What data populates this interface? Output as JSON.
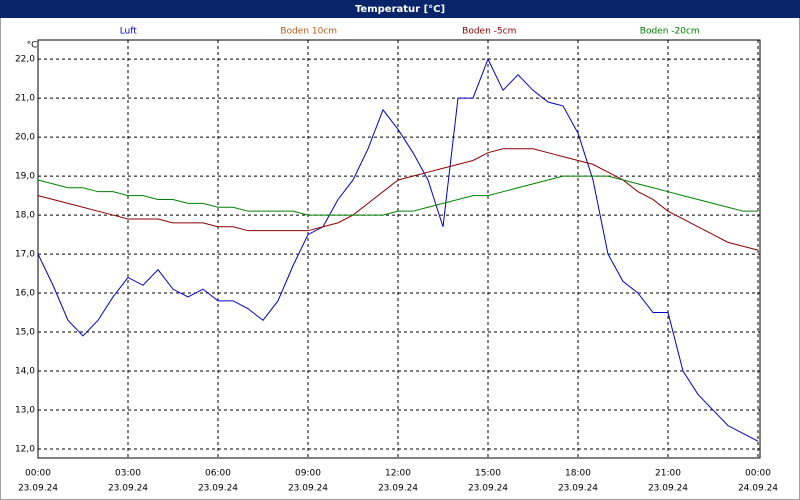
{
  "chart_data": {
    "type": "line",
    "title": "Temperatur [°C]",
    "y_unit": "°C",
    "x": [
      0,
      0.5,
      1,
      1.5,
      2,
      2.5,
      3,
      3.5,
      4,
      4.5,
      5,
      5.5,
      6,
      6.5,
      7,
      7.5,
      8,
      8.5,
      9,
      9.5,
      10,
      10.5,
      11,
      11.5,
      12,
      12.5,
      13,
      13.5,
      14,
      14.5,
      15,
      15.5,
      16,
      16.5,
      17,
      17.5,
      18,
      18.5,
      19,
      19.5,
      20,
      20.5,
      21,
      21.5,
      22,
      22.5,
      23,
      23.5,
      24
    ],
    "series": [
      {
        "name": "Luft",
        "color": "#0000c8",
        "values": [
          17.0,
          16.2,
          15.3,
          14.9,
          15.3,
          15.9,
          16.4,
          16.2,
          16.6,
          16.1,
          15.9,
          16.1,
          15.8,
          15.8,
          15.6,
          15.3,
          15.8,
          16.7,
          17.5,
          17.7,
          18.4,
          18.9,
          19.7,
          20.7,
          20.2,
          19.6,
          18.9,
          17.7,
          21.0,
          21.0,
          22.0,
          21.2,
          21.6,
          21.2,
          20.9,
          20.8,
          20.1,
          18.9,
          17.0,
          16.3,
          16.0,
          15.5,
          15.5,
          14.0,
          13.4,
          13.0,
          12.6,
          12.4,
          12.2
        ]
      },
      {
        "name": "Boden 10cm",
        "color": "#b85c1a",
        "values": [
          null,
          null,
          null,
          null,
          null,
          null,
          null,
          null,
          null,
          null,
          null,
          null,
          null,
          null,
          null,
          null,
          null,
          null,
          null,
          null,
          null,
          null,
          null,
          null,
          null,
          null,
          null,
          null,
          null,
          null,
          null,
          null,
          null,
          null,
          null,
          null,
          null,
          null,
          null,
          null,
          null,
          null,
          null,
          null,
          null,
          null,
          null,
          null,
          null
        ]
      },
      {
        "name": "Boden -5cm",
        "color": "#8b0000",
        "values": [
          18.5,
          18.4,
          18.3,
          18.2,
          18.1,
          18.0,
          17.9,
          17.9,
          17.9,
          17.8,
          17.8,
          17.8,
          17.7,
          17.7,
          17.6,
          17.6,
          17.6,
          17.6,
          17.6,
          17.7,
          17.8,
          18.0,
          18.3,
          18.6,
          18.9,
          19.0,
          19.1,
          19.2,
          19.3,
          19.4,
          19.6,
          19.7,
          19.7,
          19.7,
          19.6,
          19.5,
          19.4,
          19.3,
          19.1,
          18.9,
          18.6,
          18.4,
          18.1,
          17.9,
          17.7,
          17.5,
          17.3,
          17.2,
          17.1
        ]
      },
      {
        "name": "Boden -20cm",
        "color": "#008000",
        "values": [
          18.9,
          18.8,
          18.7,
          18.7,
          18.6,
          18.6,
          18.5,
          18.5,
          18.4,
          18.4,
          18.3,
          18.3,
          18.2,
          18.2,
          18.1,
          18.1,
          18.1,
          18.1,
          18.0,
          18.0,
          18.0,
          18.0,
          18.0,
          18.0,
          18.1,
          18.1,
          18.2,
          18.3,
          18.4,
          18.5,
          18.5,
          18.6,
          18.7,
          18.8,
          18.9,
          19.0,
          19.0,
          19.0,
          19.0,
          18.9,
          18.8,
          18.7,
          18.6,
          18.5,
          18.4,
          18.3,
          18.2,
          18.1,
          18.1
        ]
      }
    ],
    "xlim": [
      0,
      24
    ],
    "xticks": [
      {
        "value": 0,
        "label": "00:00"
      },
      {
        "value": 3,
        "label": "03:00"
      },
      {
        "value": 6,
        "label": "06:00"
      },
      {
        "value": 9,
        "label": "09:00"
      },
      {
        "value": 12,
        "label": "12:00"
      },
      {
        "value": 15,
        "label": "15:00"
      },
      {
        "value": 18,
        "label": "18:00"
      },
      {
        "value": 21,
        "label": "21:00"
      },
      {
        "value": 24,
        "label": "00:00"
      }
    ],
    "xtick_dates": [
      "23.09.24",
      "23.09.24",
      "23.09.24",
      "23.09.24",
      "23.09.24",
      "23.09.24",
      "23.09.24",
      "23.09.24",
      "24.09.24"
    ],
    "ylim": [
      11.77,
      22.49
    ],
    "yticks": [
      {
        "value": 12,
        "label": "12,0"
      },
      {
        "value": 13,
        "label": "13,0"
      },
      {
        "value": 14,
        "label": "14,0"
      },
      {
        "value": 15,
        "label": "15,0"
      },
      {
        "value": 16,
        "label": "16,0"
      },
      {
        "value": 17,
        "label": "17,0"
      },
      {
        "value": 18,
        "label": "18,0"
      },
      {
        "value": 19,
        "label": "19,0"
      },
      {
        "value": 20,
        "label": "20,0"
      },
      {
        "value": 21,
        "label": "21,0"
      },
      {
        "value": 22,
        "label": "22,0"
      }
    ],
    "grid": true
  }
}
